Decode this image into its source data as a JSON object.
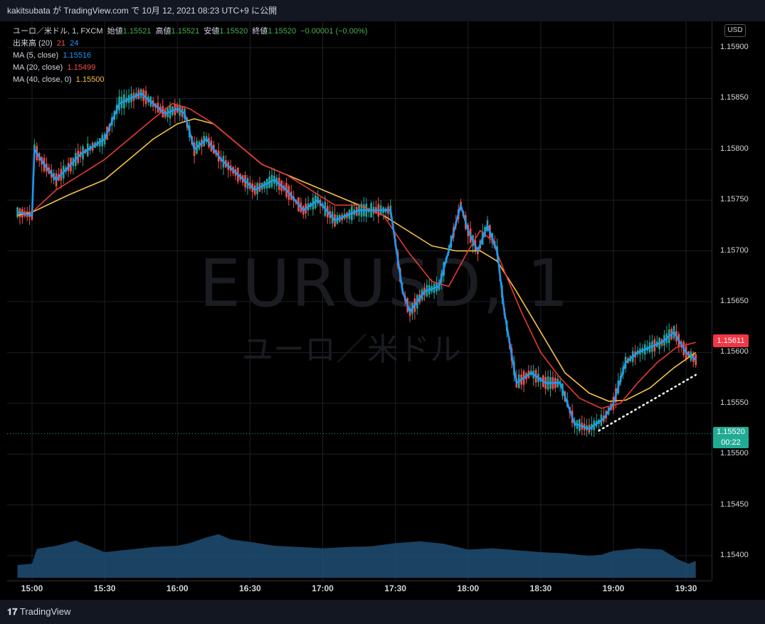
{
  "header": {
    "text": "kakitsubata が TradingView.com で 10月 12, 2021 08:23 UTC+9 に公開"
  },
  "legend": {
    "symbol_line": "ユーロ／米ドル, 1, FXCM",
    "open_label": "始値",
    "open_value": "1.15521",
    "high_label": "高値",
    "high_value": "1.15521",
    "low_label": "安値",
    "low_value": "1.15520",
    "close_label": "終値",
    "close_value": "1.15520",
    "change": "−0.00001 (−0.00%)",
    "volume_label": "出来高 (20)",
    "volume_v1": "21",
    "volume_v2": "24",
    "ma5_label": "MA (5, close)",
    "ma5_value": "1.15516",
    "ma20_label": "MA (20, close)",
    "ma20_value": "1.15499",
    "ma40_label": "MA (40, close, 0)",
    "ma40_value": "1.15500"
  },
  "currency_button": "USD",
  "watermark": {
    "symbol": "EURUSD, 1",
    "name": "ユーロ／米ドル"
  },
  "price_tags": {
    "red": "1.15611",
    "green_price": "1.15520",
    "green_countdown": "00:22"
  },
  "footer": {
    "brand": "TradingView"
  },
  "colors": {
    "up": "#26a69a",
    "down": "#ef5350",
    "ma5": "#2196f3",
    "ma20": "#e53935",
    "ma40": "#f6c343",
    "volume": "#1e4d73"
  },
  "chart_data": {
    "type": "candlestick",
    "symbol": "EURUSD",
    "interval": "1",
    "y_axis": {
      "ticks": [
        "1.15900",
        "1.15850",
        "1.15800",
        "1.15750",
        "1.15700",
        "1.15650",
        "1.15600",
        "1.15550",
        "1.15500",
        "1.15450",
        "1.15400"
      ],
      "ylim": [
        1.154,
        1.159
      ]
    },
    "x_axis": {
      "ticks": [
        "15:00",
        "15:30",
        "16:00",
        "16:30",
        "17:00",
        "17:30",
        "18:00",
        "18:30",
        "19:00",
        "19:30"
      ]
    },
    "ma5": [
      [
        "14:54",
        1.15738
      ],
      [
        "15:00",
        1.15735
      ],
      [
        "15:01",
        1.158
      ],
      [
        "15:05",
        1.15785
      ],
      [
        "15:10",
        1.1577
      ],
      [
        "15:20",
        1.15795
      ],
      [
        "15:30",
        1.1581
      ],
      [
        "15:36",
        1.15845
      ],
      [
        "15:45",
        1.15855
      ],
      [
        "15:50",
        1.15845
      ],
      [
        "15:55",
        1.15835
      ],
      [
        "16:00",
        1.1584
      ],
      [
        "16:03",
        1.15835
      ],
      [
        "16:07",
        1.158
      ],
      [
        "16:12",
        1.1581
      ],
      [
        "16:18",
        1.1579
      ],
      [
        "16:25",
        1.15775
      ],
      [
        "16:32",
        1.1576
      ],
      [
        "16:40",
        1.1577
      ],
      [
        "16:45",
        1.1576
      ],
      [
        "16:52",
        1.1574
      ],
      [
        "16:58",
        1.1575
      ],
      [
        "17:05",
        1.1573
      ],
      [
        "17:15",
        1.1574
      ],
      [
        "17:22",
        1.1574
      ],
      [
        "17:28",
        1.1574
      ],
      [
        "17:33",
        1.1566
      ],
      [
        "17:36",
        1.1564
      ],
      [
        "17:42",
        1.1566
      ],
      [
        "17:48",
        1.15665
      ],
      [
        "17:52",
        1.157
      ],
      [
        "17:57",
        1.15745
      ],
      [
        "18:00",
        1.1572
      ],
      [
        "18:04",
        1.157
      ],
      [
        "18:08",
        1.15725
      ],
      [
        "18:12",
        1.157
      ],
      [
        "18:15",
        1.1564
      ],
      [
        "18:20",
        1.1557
      ],
      [
        "18:26",
        1.1558
      ],
      [
        "18:32",
        1.1557
      ],
      [
        "18:38",
        1.1557
      ],
      [
        "18:44",
        1.1553
      ],
      [
        "18:50",
        1.15525
      ],
      [
        "18:56",
        1.15535
      ],
      [
        "19:00",
        1.1555
      ],
      [
        "19:05",
        1.1559
      ],
      [
        "19:10",
        1.156
      ],
      [
        "19:20",
        1.1561
      ],
      [
        "19:25",
        1.1562
      ],
      [
        "19:30",
        1.156
      ],
      [
        "19:34",
        1.15593
      ]
    ],
    "ma20": [
      [
        "14:54",
        1.15738
      ],
      [
        "15:00",
        1.15738
      ],
      [
        "15:10",
        1.1576
      ],
      [
        "15:20",
        1.15775
      ],
      [
        "15:30",
        1.1579
      ],
      [
        "15:40",
        1.1581
      ],
      [
        "15:50",
        1.1583
      ],
      [
        "15:58",
        1.15845
      ],
      [
        "16:05",
        1.1584
      ],
      [
        "16:15",
        1.15825
      ],
      [
        "16:25",
        1.15805
      ],
      [
        "16:35",
        1.15785
      ],
      [
        "16:45",
        1.15775
      ],
      [
        "16:55",
        1.1576
      ],
      [
        "17:05",
        1.15745
      ],
      [
        "17:15",
        1.15745
      ],
      [
        "17:25",
        1.15735
      ],
      [
        "17:35",
        1.157
      ],
      [
        "17:45",
        1.1567
      ],
      [
        "17:52",
        1.15665
      ],
      [
        "18:00",
        1.157
      ],
      [
        "18:05",
        1.1572
      ],
      [
        "18:10",
        1.1571
      ],
      [
        "18:15",
        1.1568
      ],
      [
        "18:22",
        1.1564
      ],
      [
        "18:30",
        1.156
      ],
      [
        "18:38",
        1.15575
      ],
      [
        "18:46",
        1.15555
      ],
      [
        "18:55",
        1.15545
      ],
      [
        "19:03",
        1.1555
      ],
      [
        "19:10",
        1.1557
      ],
      [
        "19:18",
        1.1559
      ],
      [
        "19:26",
        1.15605
      ],
      [
        "19:34",
        1.1561
      ]
    ],
    "ma40": [
      [
        "14:54",
        1.15735
      ],
      [
        "15:00",
        1.15738
      ],
      [
        "15:15",
        1.15755
      ],
      [
        "15:30",
        1.1577
      ],
      [
        "15:40",
        1.1579
      ],
      [
        "15:50",
        1.1581
      ],
      [
        "16:00",
        1.15825
      ],
      [
        "16:07",
        1.1583
      ],
      [
        "16:15",
        1.15825
      ],
      [
        "16:25",
        1.15805
      ],
      [
        "16:35",
        1.15785
      ],
      [
        "16:45",
        1.15775
      ],
      [
        "16:55",
        1.15765
      ],
      [
        "17:05",
        1.15755
      ],
      [
        "17:15",
        1.15745
      ],
      [
        "17:25",
        1.15735
      ],
      [
        "17:35",
        1.1572
      ],
      [
        "17:45",
        1.15705
      ],
      [
        "17:55",
        1.157
      ],
      [
        "18:05",
        1.157
      ],
      [
        "18:12",
        1.1569
      ],
      [
        "18:20",
        1.1566
      ],
      [
        "18:30",
        1.1562
      ],
      [
        "18:40",
        1.1558
      ],
      [
        "18:50",
        1.1556
      ],
      [
        "18:58",
        1.15552
      ],
      [
        "19:05",
        1.15553
      ],
      [
        "19:15",
        1.15565
      ],
      [
        "19:25",
        1.15585
      ],
      [
        "19:34",
        1.156
      ]
    ],
    "trendline": [
      [
        "18:54",
        1.15523
      ],
      [
        "19:34",
        1.15578
      ]
    ],
    "last_price": 1.1552,
    "volume_area": [
      [
        "14:54",
        0.2
      ],
      [
        "15:00",
        0.22
      ],
      [
        "15:02",
        0.45
      ],
      [
        "15:10",
        0.5
      ],
      [
        "15:18",
        0.58
      ],
      [
        "15:22",
        0.52
      ],
      [
        "15:30",
        0.4
      ],
      [
        "15:40",
        0.44
      ],
      [
        "15:50",
        0.48
      ],
      [
        "16:00",
        0.5
      ],
      [
        "16:05",
        0.54
      ],
      [
        "16:12",
        0.63
      ],
      [
        "16:17",
        0.68
      ],
      [
        "16:22",
        0.6
      ],
      [
        "16:30",
        0.56
      ],
      [
        "16:40",
        0.5
      ],
      [
        "16:50",
        0.48
      ],
      [
        "17:00",
        0.46
      ],
      [
        "17:10",
        0.48
      ],
      [
        "17:20",
        0.49
      ],
      [
        "17:30",
        0.54
      ],
      [
        "17:40",
        0.57
      ],
      [
        "17:50",
        0.53
      ],
      [
        "18:00",
        0.44
      ],
      [
        "18:10",
        0.46
      ],
      [
        "18:20",
        0.43
      ],
      [
        "18:30",
        0.4
      ],
      [
        "18:40",
        0.38
      ],
      [
        "18:50",
        0.34
      ],
      [
        "18:55",
        0.36
      ],
      [
        "19:00",
        0.42
      ],
      [
        "19:10",
        0.46
      ],
      [
        "19:20",
        0.44
      ],
      [
        "19:27",
        0.28
      ],
      [
        "19:31",
        0.22
      ],
      [
        "19:34",
        0.26
      ]
    ]
  }
}
